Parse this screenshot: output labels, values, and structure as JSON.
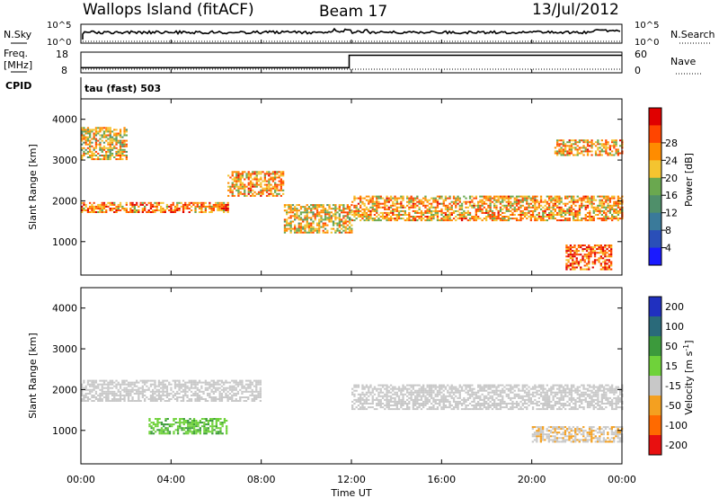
{
  "header": {
    "station": "Wallops Island (fitACF)",
    "beam": "Beam 17",
    "date": "13/Jul/2012"
  },
  "strip": {
    "nsky_label": "N.Sky",
    "nsearch_label": "N.Search",
    "nsky_ticks": [
      "10^5",
      "10^0"
    ],
    "nsearch_ticks": [
      "10^5",
      "10^0"
    ],
    "freq_label": "Freq.",
    "freq_unit": "[MHz]",
    "freq_ticks": [
      "18",
      "8"
    ],
    "nave_label": "Nave",
    "nave_ticks": [
      "60",
      "0"
    ],
    "cpid_label": "CPID",
    "cpid_value": "tau (fast) 503"
  },
  "panels": {
    "ylabel": "Slant Range [km]",
    "xlabel": "Time UT",
    "yticks": [
      "1000",
      "2000",
      "3000",
      "4000"
    ],
    "xticks": [
      "00:00",
      "04:00",
      "08:00",
      "12:00",
      "16:00",
      "20:00",
      "00:00"
    ]
  },
  "power_scale": {
    "label": "Power [dB]",
    "ticks": [
      "4",
      "8",
      "12",
      "16",
      "20",
      "24",
      "28"
    ],
    "colors": [
      "#1a1aff",
      "#2a4fb8",
      "#3a7a9a",
      "#4f8f6a",
      "#6aa84f",
      "#f4c430",
      "#ff8c00",
      "#ff4500",
      "#e00000"
    ]
  },
  "velocity_scale": {
    "label": "Velocity [m s",
    "sup": "-1",
    "label_end": "]",
    "ticks": [
      "200",
      "100",
      "50",
      "15",
      "-15",
      "-50",
      "-100",
      "-200"
    ],
    "colors": [
      "#2030c0",
      "#2a6a7a",
      "#3c9a3c",
      "#6fd23a",
      "#c8c8c8",
      "#f4a020",
      "#ff6a00",
      "#e81010"
    ]
  },
  "chart_data": [
    {
      "type": "heatmap",
      "name": "Power",
      "x_range_hours": [
        0,
        24
      ],
      "y_range_km": [
        180,
        4500
      ],
      "color_range_db": [
        0,
        32
      ],
      "bands": [
        {
          "t_hours": [
            0.0,
            6.5
          ],
          "range_km": [
            1700,
            1950
          ],
          "power_db": 24
        },
        {
          "t_hours": [
            6.5,
            9.0
          ],
          "range_km": [
            2100,
            2700
          ],
          "power_db": 22
        },
        {
          "t_hours": [
            9.0,
            12.0
          ],
          "range_km": [
            1200,
            1900
          ],
          "power_db": 20
        },
        {
          "t_hours": [
            12.0,
            24.0
          ],
          "range_km": [
            1500,
            2100
          ],
          "power_db": 22
        },
        {
          "t_hours": [
            0.0,
            2.0
          ],
          "range_km": [
            3000,
            3800
          ],
          "power_db": 20
        },
        {
          "t_hours": [
            21.0,
            24.0
          ],
          "range_km": [
            3100,
            3500
          ],
          "power_db": 22
        },
        {
          "t_hours": [
            21.5,
            23.5
          ],
          "range_km": [
            300,
            900
          ],
          "power_db": 26
        }
      ]
    },
    {
      "type": "heatmap",
      "name": "Velocity",
      "x_range_hours": [
        0,
        24
      ],
      "y_range_km": [
        180,
        4500
      ],
      "color_range_ms": [
        -200,
        200
      ],
      "bands": [
        {
          "t_hours": [
            0.0,
            8.0
          ],
          "range_km": [
            1700,
            2200
          ],
          "velocity_ms": 0
        },
        {
          "t_hours": [
            3.0,
            6.5
          ],
          "range_km": [
            900,
            1300
          ],
          "velocity_ms": 30
        },
        {
          "t_hours": [
            12.0,
            24.0
          ],
          "range_km": [
            1500,
            2100
          ],
          "velocity_ms": 0
        },
        {
          "t_hours": [
            20.0,
            24.0
          ],
          "range_km": [
            700,
            1100
          ],
          "velocity_ms": -10
        }
      ]
    },
    {
      "type": "line",
      "name": "Freq",
      "x": [
        0,
        11.9,
        11.9,
        24
      ],
      "y_mhz": [
        10.5,
        10.5,
        16.5,
        16.5
      ],
      "ylim": [
        8,
        18
      ]
    }
  ]
}
